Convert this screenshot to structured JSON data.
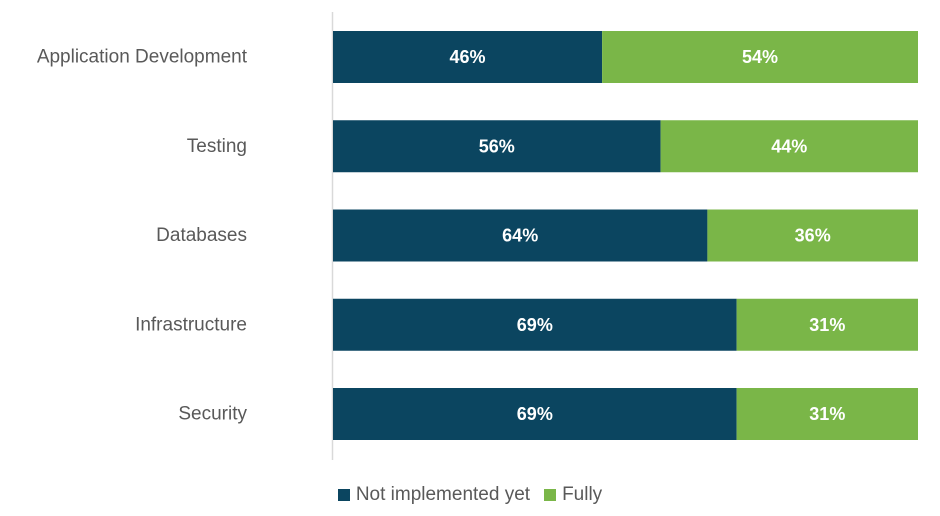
{
  "chart_data": {
    "type": "bar",
    "orientation": "horizontal",
    "stacked": true,
    "categories": [
      "Application Development",
      "Testing",
      "Databases",
      "Infrastructure",
      "Security"
    ],
    "series": [
      {
        "name": "Not implemented yet",
        "color": "#0b4560",
        "values": [
          46,
          56,
          64,
          69,
          69
        ],
        "labels": [
          "46%",
          "56%",
          "64%",
          "69%",
          "69%"
        ]
      },
      {
        "name": "Fully",
        "color": "#7ab648",
        "values": [
          54,
          44,
          36,
          31,
          31
        ],
        "labels": [
          "54%",
          "44%",
          "36%",
          "31%",
          "31%"
        ]
      }
    ],
    "xlim": [
      0,
      100
    ],
    "unit": "%",
    "grid": false,
    "legend_position": "bottom"
  }
}
